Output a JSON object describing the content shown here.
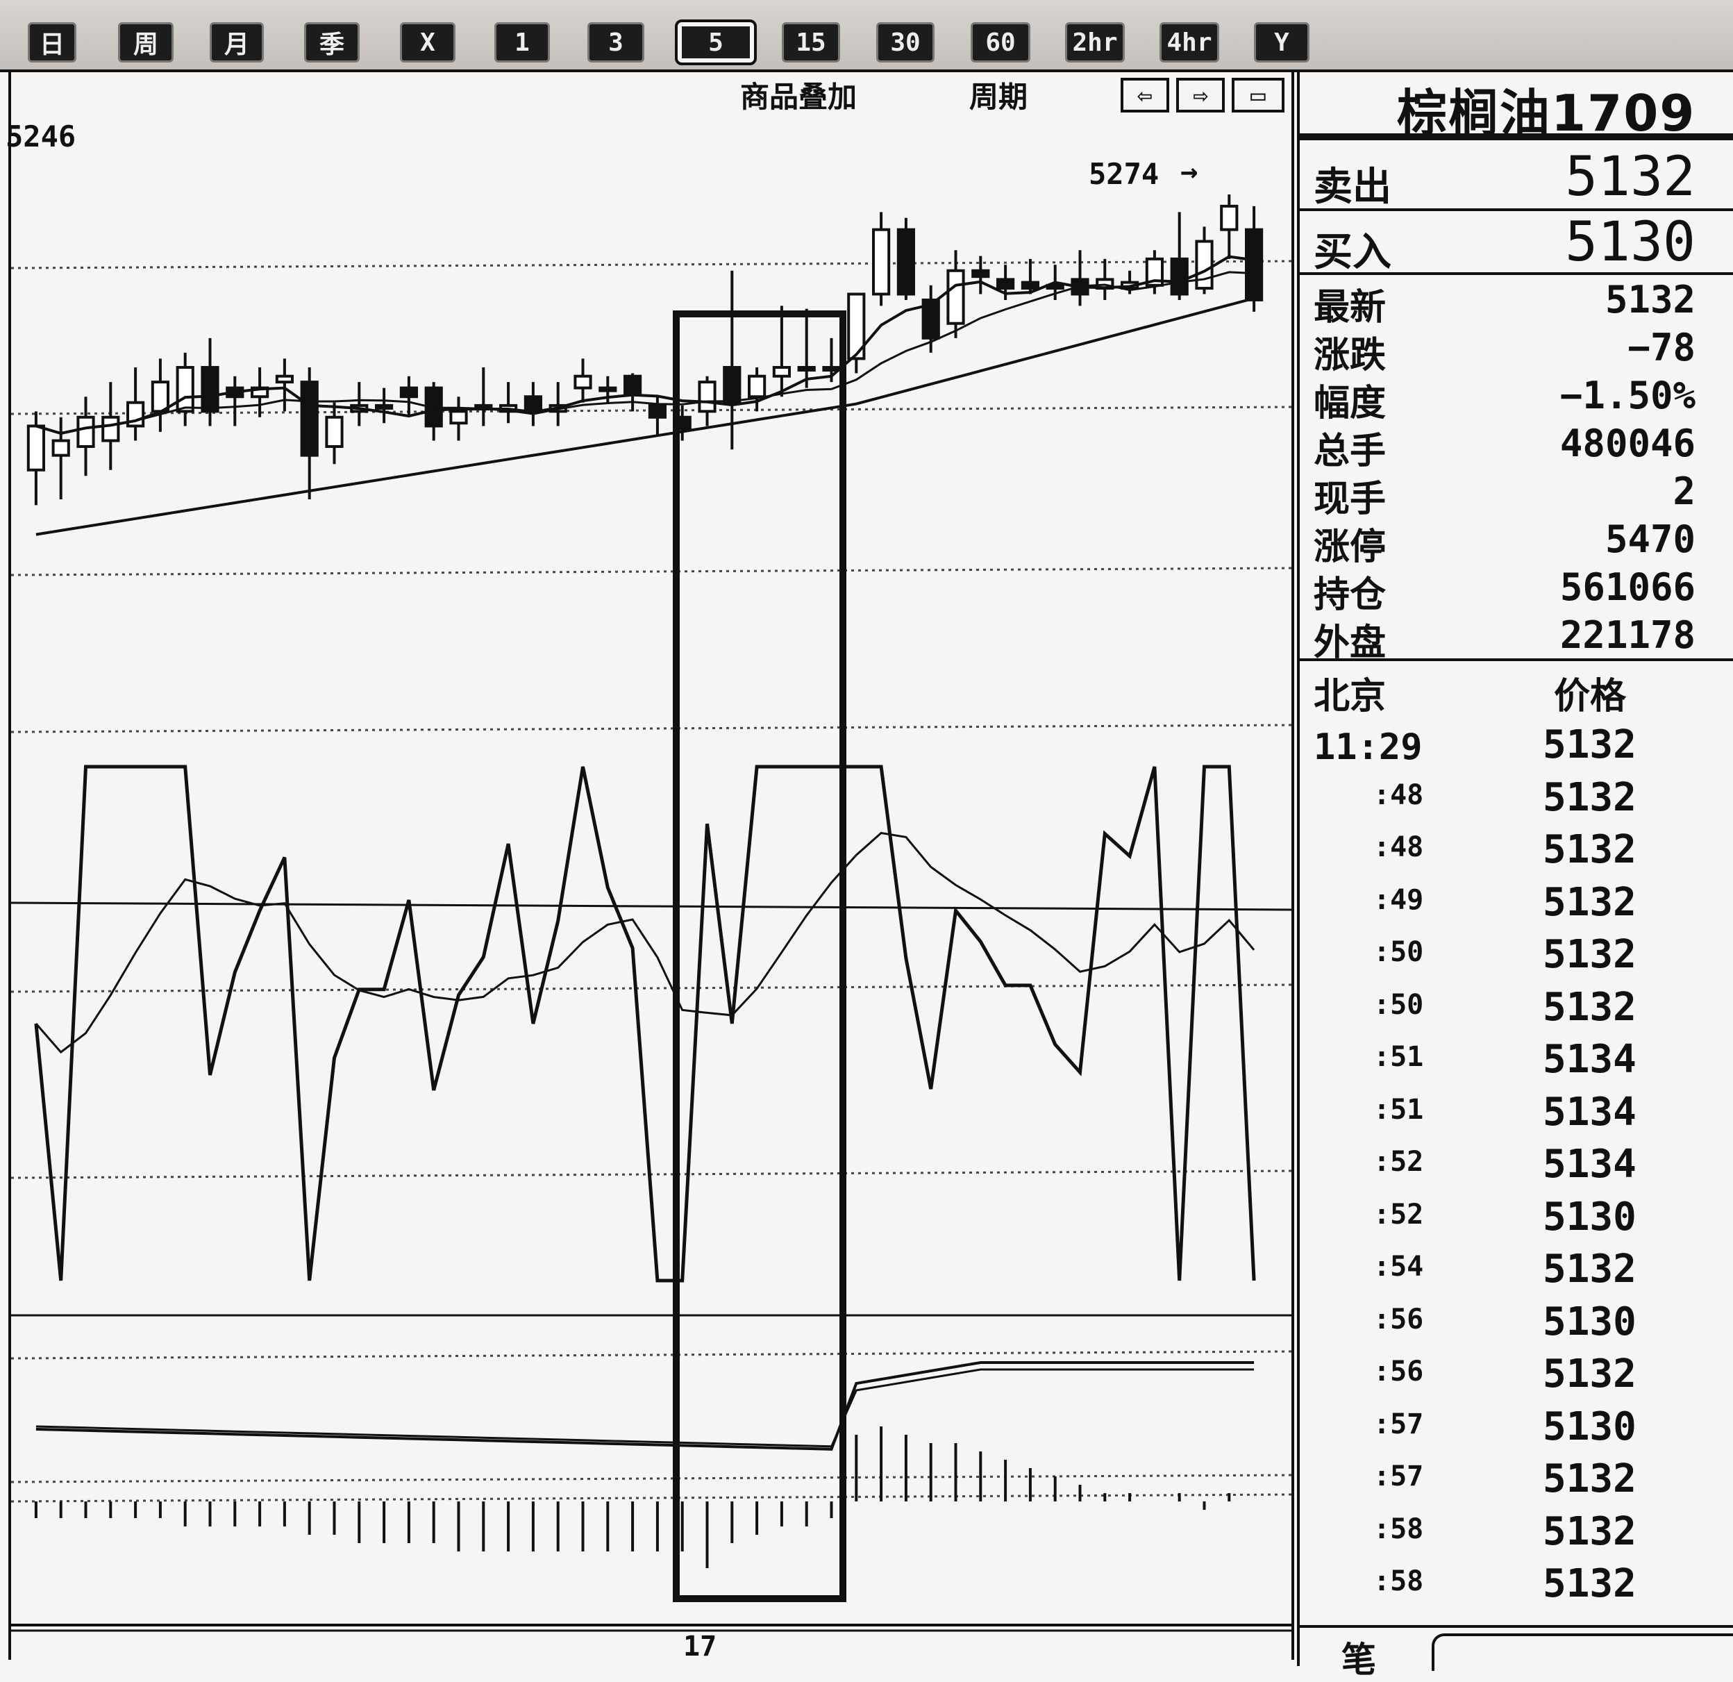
{
  "toolbar": {
    "periods": [
      {
        "label": "日"
      },
      {
        "label": "周"
      },
      {
        "label": "月"
      },
      {
        "label": "季"
      },
      {
        "label": "X"
      },
      {
        "label": "1"
      },
      {
        "label": "3"
      },
      {
        "label": "5",
        "active": true
      },
      {
        "label": "15"
      },
      {
        "label": "30"
      },
      {
        "label": "60"
      },
      {
        "label": "2hr"
      },
      {
        "label": "4hr"
      },
      {
        "label": "Y"
      }
    ]
  },
  "chart_header": {
    "overlay_label": "商品叠加",
    "period_label": "周期",
    "nav_icons": [
      "arrow-left-icon",
      "arrow-right-icon",
      "split-view-icon"
    ]
  },
  "chart_data": {
    "type": "candlestick",
    "top_price_label": "5246",
    "high_annotation": "5274",
    "x_axis_label": "17",
    "candles_note": "",
    "candles": [
      [
        5180,
        5195,
        5168,
        5200
      ],
      [
        5185,
        5190,
        5170,
        5198
      ],
      [
        5188,
        5198,
        5178,
        5205
      ],
      [
        5190,
        5198,
        5180,
        5210
      ],
      [
        5195,
        5203,
        5190,
        5215
      ],
      [
        5200,
        5210,
        5193,
        5218
      ],
      [
        5200,
        5215,
        5195,
        5220
      ],
      [
        5215,
        5200,
        5195,
        5225
      ],
      [
        5208,
        5205,
        5195,
        5212
      ],
      [
        5205,
        5208,
        5198,
        5215
      ],
      [
        5210,
        5212,
        5200,
        5218
      ],
      [
        5210,
        5185,
        5170,
        5215
      ],
      [
        5188,
        5198,
        5182,
        5203
      ],
      [
        5200,
        5202,
        5195,
        5210
      ],
      [
        5202,
        5202,
        5196,
        5208
      ],
      [
        5208,
        5205,
        5198,
        5212
      ],
      [
        5208,
        5195,
        5190,
        5210
      ],
      [
        5196,
        5200,
        5190,
        5205
      ],
      [
        5202,
        5202,
        5195,
        5215
      ],
      [
        5200,
        5202,
        5196,
        5210
      ],
      [
        5205,
        5200,
        5195,
        5210
      ],
      [
        5200,
        5202,
        5195,
        5210
      ],
      [
        5208,
        5212,
        5203,
        5218
      ],
      [
        5208,
        5208,
        5203,
        5212
      ],
      [
        5212,
        5206,
        5200,
        5213
      ],
      [
        5202,
        5198,
        5192,
        5205
      ],
      [
        5198,
        5194,
        5190,
        5202
      ],
      [
        5200,
        5210,
        5195,
        5212
      ],
      [
        5215,
        5203,
        5187,
        5248
      ],
      [
        5205,
        5212,
        5200,
        5215
      ],
      [
        5212,
        5215,
        5205,
        5236
      ],
      [
        5215,
        5215,
        5208,
        5235
      ],
      [
        5215,
        5215,
        5210,
        5225
      ],
      [
        5218,
        5240,
        5213,
        5240
      ],
      [
        5240,
        5262,
        5236,
        5268
      ],
      [
        5262,
        5240,
        5238,
        5266
      ],
      [
        5238,
        5225,
        5220,
        5243
      ],
      [
        5230,
        5248,
        5225,
        5255
      ],
      [
        5248,
        5246,
        5240,
        5253
      ],
      [
        5245,
        5242,
        5238,
        5250
      ],
      [
        5244,
        5242,
        5240,
        5252
      ],
      [
        5243,
        5242,
        5238,
        5250
      ],
      [
        5245,
        5240,
        5236,
        5255
      ],
      [
        5242,
        5245,
        5238,
        5252
      ],
      [
        5242,
        5244,
        5240,
        5248
      ],
      [
        5243,
        5252,
        5240,
        5255
      ],
      [
        5252,
        5240,
        5238,
        5268
      ],
      [
        5242,
        5258,
        5240,
        5263
      ],
      [
        5262,
        5270,
        5252,
        5274
      ],
      [
        5262,
        5238,
        5234,
        5270
      ]
    ],
    "macd_histogram": [
      -2,
      -2,
      -2,
      -2,
      -2,
      -2,
      -3,
      -3,
      -3,
      -3,
      -3,
      -4,
      -4,
      -5,
      -5,
      -5,
      -5,
      -6,
      -6,
      -6,
      -6,
      -6,
      -6,
      -6,
      -6,
      -6,
      -6,
      -8,
      -5,
      -4,
      -3,
      -3,
      -2,
      8,
      9,
      8,
      7,
      7,
      6,
      5,
      4,
      3,
      2,
      1,
      1,
      0,
      1,
      -1,
      1,
      0
    ]
  },
  "quote_panel": {
    "title": "棕榈油1709",
    "sell": {
      "label": "卖出",
      "value": "5132"
    },
    "buy": {
      "label": "买入",
      "value": "5130"
    },
    "stats": [
      {
        "label": "最新",
        "value": "5132"
      },
      {
        "label": "涨跌",
        "value": "−78"
      },
      {
        "label": "幅度",
        "value": "−1.50%"
      },
      {
        "label": "总手",
        "value": "480046"
      },
      {
        "label": "现手",
        "value": "2"
      },
      {
        "label": "涨停",
        "value": "5470"
      },
      {
        "label": "持仓",
        "value": "561066"
      },
      {
        "label": "外盘",
        "value": "221178"
      }
    ],
    "ticks_header": {
      "time": "北京",
      "price": "价格"
    },
    "ticks": [
      {
        "time": "11:29",
        "price": "5132"
      },
      {
        "time": ":48",
        "price": "5132"
      },
      {
        "time": ":48",
        "price": "5132"
      },
      {
        "time": ":49",
        "price": "5132"
      },
      {
        "time": ":50",
        "price": "5132"
      },
      {
        "time": ":50",
        "price": "5132"
      },
      {
        "time": ":51",
        "price": "5134"
      },
      {
        "time": ":51",
        "price": "5134"
      },
      {
        "time": ":52",
        "price": "5134"
      },
      {
        "time": ":52",
        "price": "5130"
      },
      {
        "time": ":54",
        "price": "5132"
      },
      {
        "time": ":56",
        "price": "5130"
      },
      {
        "time": ":56",
        "price": "5132"
      },
      {
        "time": ":57",
        "price": "5130"
      },
      {
        "time": ":57",
        "price": "5132"
      },
      {
        "time": ":58",
        "price": "5132"
      },
      {
        "time": ":58",
        "price": "5132"
      }
    ],
    "footer_label": "笔"
  }
}
